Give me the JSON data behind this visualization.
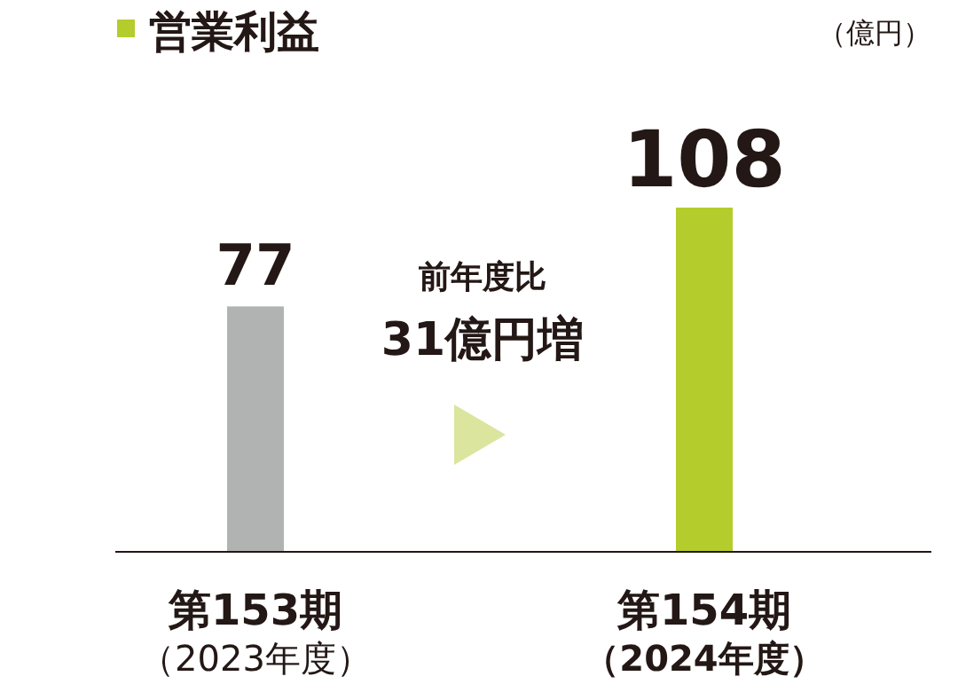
{
  "chart_data": {
    "type": "bar",
    "title": "営業利益",
    "categories": [
      "第153期（2023年度）",
      "第154期（2024年度）"
    ],
    "values": [
      77,
      108
    ],
    "colors": [
      "#b1b3b3",
      "#b5cc2d"
    ],
    "data_labels": true,
    "annotations": [
      "（億円）",
      "前年度比",
      "31億円増"
    ]
  }
}
